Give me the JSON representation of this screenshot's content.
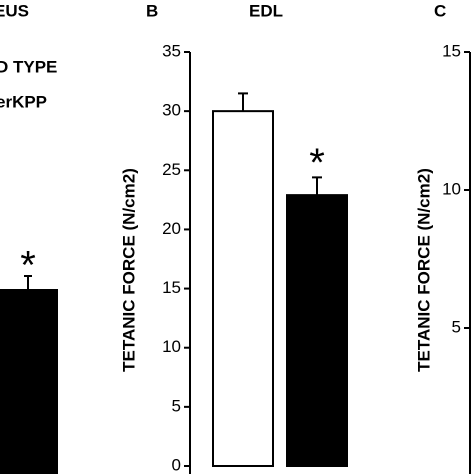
{
  "chart_data": [
    {
      "type": "bar",
      "title": "EUS",
      "legend": [
        "D TYPE",
        "erKPP"
      ],
      "annotation": "*"
    },
    {
      "type": "bar",
      "panel": "B",
      "title": "EDL",
      "ylabel": "TETANIC FORCE (N/cm2)",
      "categories": [
        null,
        null
      ],
      "values": [
        30,
        22.9
      ],
      "errors": [
        1.5,
        1.5
      ],
      "colors": [
        "#ffffff",
        "#000000"
      ],
      "ylim": [
        0,
        35
      ],
      "yticks": [
        0,
        5,
        10,
        15,
        20,
        25,
        30,
        35
      ],
      "annotation": "*"
    },
    {
      "type": "bar",
      "panel": "C",
      "ylabel": "TETANIC FORCE (N/cm2)",
      "ylim": [
        0,
        15
      ],
      "yticks": [
        5,
        10,
        15
      ]
    }
  ]
}
